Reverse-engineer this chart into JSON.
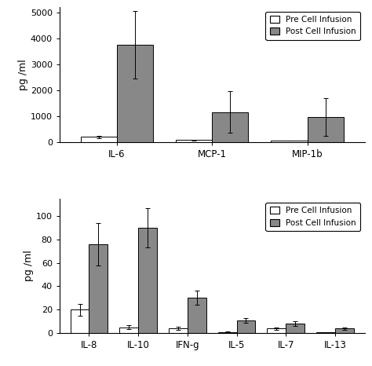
{
  "top": {
    "categories": [
      "IL-6",
      "MCP-1",
      "MIP-1b"
    ],
    "pre_values": [
      200,
      70,
      55
    ],
    "post_values": [
      3750,
      1150,
      975
    ],
    "pre_errors": [
      45,
      10,
      8
    ],
    "post_errors": [
      1300,
      800,
      730
    ],
    "ylabel": "pg /ml",
    "ylim": [
      0,
      5200
    ],
    "yticks": [
      0,
      1000,
      2000,
      3000,
      4000,
      5000
    ]
  },
  "bottom": {
    "categories": [
      "IL-8",
      "IL-10",
      "IFN-g",
      "IL-5",
      "IL-7",
      "IL-13"
    ],
    "pre_values": [
      20,
      5,
      4,
      1,
      4,
      0.5
    ],
    "post_values": [
      76,
      90,
      30,
      11,
      8,
      4
    ],
    "pre_errors": [
      5,
      1.5,
      1.5,
      0.4,
      1,
      0.2
    ],
    "post_errors": [
      18,
      17,
      6,
      2,
      2,
      1
    ],
    "ylabel": "pg /ml",
    "ylim": [
      0,
      115
    ],
    "yticks": [
      0,
      20,
      40,
      60,
      80,
      100
    ]
  },
  "bar_width": 0.38,
  "pre_color": "#ffffff",
  "post_color": "#888888",
  "edge_color": "#000000",
  "legend_labels": [
    "Pre Cell Infusion",
    "Post Cell Infusion"
  ]
}
